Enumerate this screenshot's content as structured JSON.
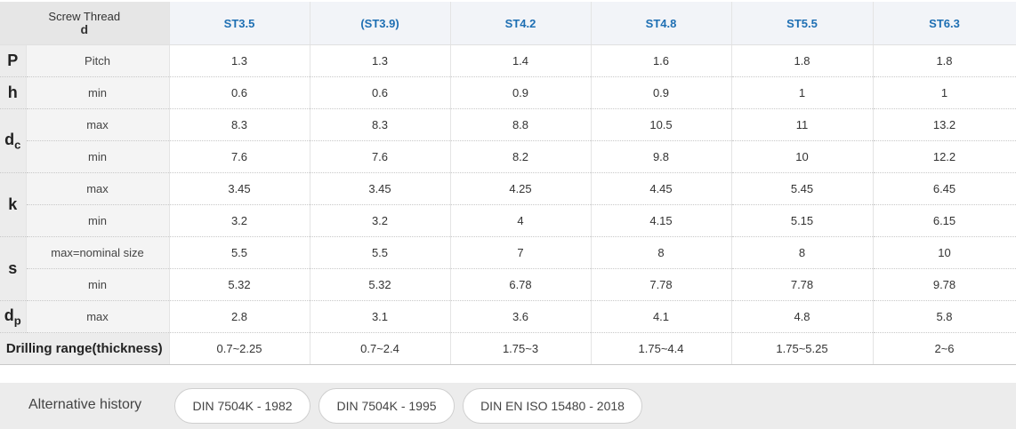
{
  "header": {
    "corner_line1": "Screw Thread",
    "corner_line2": "d",
    "sizes": [
      "ST3.5",
      "(ST3.9)",
      "ST4.2",
      "ST4.8",
      "ST5.5",
      "ST6.3"
    ]
  },
  "rows": {
    "P": {
      "symbol": "P",
      "label": "Pitch",
      "values": [
        "1.3",
        "1.3",
        "1.4",
        "1.6",
        "1.8",
        "1.8"
      ]
    },
    "h": {
      "symbol": "h",
      "label": "min",
      "values": [
        "0.6",
        "0.6",
        "0.9",
        "0.9",
        "1",
        "1"
      ]
    },
    "dc": {
      "symbol": "d",
      "sub": "c",
      "max": {
        "label": "max",
        "values": [
          "8.3",
          "8.3",
          "8.8",
          "10.5",
          "11",
          "13.2"
        ]
      },
      "min": {
        "label": "min",
        "values": [
          "7.6",
          "7.6",
          "8.2",
          "9.8",
          "10",
          "12.2"
        ]
      }
    },
    "k": {
      "symbol": "k",
      "max": {
        "label": "max",
        "values": [
          "3.45",
          "3.45",
          "4.25",
          "4.45",
          "5.45",
          "6.45"
        ]
      },
      "min": {
        "label": "min",
        "values": [
          "3.2",
          "3.2",
          "4",
          "4.15",
          "5.15",
          "6.15"
        ]
      }
    },
    "s": {
      "symbol": "s",
      "max": {
        "label": "max=nominal size",
        "values": [
          "5.5",
          "5.5",
          "7",
          "8",
          "8",
          "10"
        ]
      },
      "min": {
        "label": "min",
        "values": [
          "5.32",
          "5.32",
          "6.78",
          "7.78",
          "7.78",
          "9.78"
        ]
      }
    },
    "dp": {
      "symbol": "d",
      "sub": "p",
      "label": "max",
      "values": [
        "2.8",
        "3.1",
        "3.6",
        "4.1",
        "4.8",
        "5.8"
      ]
    },
    "drill": {
      "label": "Drilling range(thickness)",
      "values": [
        "0.7~2.25",
        "0.7~2.4",
        "1.75~3",
        "1.75~4.4",
        "1.75~5.25",
        "2~6"
      ]
    }
  },
  "history": {
    "label": "Alternative history",
    "items": [
      "DIN 7504K - 1982",
      "DIN 7504K - 1995",
      "DIN EN ISO 15480 - 2018"
    ]
  }
}
